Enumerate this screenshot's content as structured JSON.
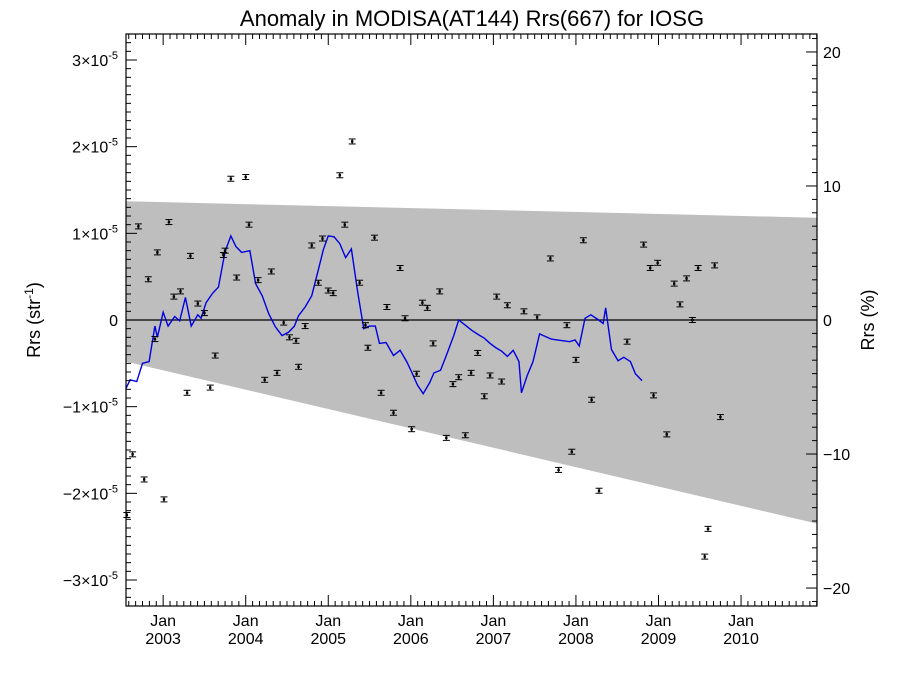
{
  "chart_data": {
    "type": "scatter",
    "title": "Anomaly in MODISA(AT144) Rrs(667) for IOSG",
    "ylabel_base": "Rrs (str",
    "ylabel_sup": "-1",
    "ylabel_close": ")",
    "y2label": "Rrs (%)",
    "xlim": [
      2002.55,
      2010.92
    ],
    "ylim": [
      -3.3e-05,
      3.3e-05
    ],
    "y2lim": [
      -21.34,
      21.34
    ],
    "x_ticks": [
      {
        "x": 2003.0,
        "top": "Jan",
        "bottom": "2003"
      },
      {
        "x": 2004.0,
        "top": "Jan",
        "bottom": "2004"
      },
      {
        "x": 2005.0,
        "top": "Jan",
        "bottom": "2005"
      },
      {
        "x": 2006.0,
        "top": "Jan",
        "bottom": "2006"
      },
      {
        "x": 2007.0,
        "top": "Jan",
        "bottom": "2007"
      },
      {
        "x": 2008.0,
        "top": "Jan",
        "bottom": "2008"
      },
      {
        "x": 2009.0,
        "top": "Jan",
        "bottom": "2009"
      },
      {
        "x": 2010.0,
        "top": "Jan",
        "bottom": "2010"
      }
    ],
    "y_ticks": [
      {
        "v": 3e-05,
        "m": "3",
        "e": "-5"
      },
      {
        "v": 2e-05,
        "m": "2",
        "e": "-5"
      },
      {
        "v": 1e-05,
        "m": "1",
        "e": "-5"
      },
      {
        "v": 0,
        "m": "0",
        "e": ""
      },
      {
        "v": -1e-05,
        "m": "−1",
        "e": "-5"
      },
      {
        "v": -2e-05,
        "m": "−2",
        "e": "-5"
      },
      {
        "v": -3e-05,
        "m": "−3",
        "e": "-5"
      }
    ],
    "y2_ticks": [
      {
        "v": 20,
        "label": "20"
      },
      {
        "v": 10,
        "label": "10"
      },
      {
        "v": 0,
        "label": "0"
      },
      {
        "v": -10,
        "label": "−10"
      },
      {
        "v": -20,
        "label": "−20"
      }
    ],
    "band": {
      "upper": [
        [
          2002.55,
          1.37e-05
        ],
        [
          2010.92,
          1.18e-05
        ]
      ],
      "lower": [
        [
          2002.55,
          -4.8e-06
        ],
        [
          2010.92,
          -2.35e-05
        ]
      ],
      "color": "#bebebe"
    },
    "points": [
      [
        2002.56,
        -2.25e-05
      ],
      [
        2002.63,
        -1.55e-05
      ],
      [
        2002.7,
        1.08e-05
      ],
      [
        2002.77,
        -1.84e-05
      ],
      [
        2002.82,
        4.7e-06
      ],
      [
        2002.9,
        -2.2e-06
      ],
      [
        2002.93,
        7.8e-06
      ],
      [
        2003.01,
        -2.07e-05
      ],
      [
        2003.07,
        1.13e-05
      ],
      [
        2003.13,
        2.7e-06
      ],
      [
        2003.21,
        3.3e-06
      ],
      [
        2003.29,
        -8.4e-06
      ],
      [
        2003.33,
        7.4e-06
      ],
      [
        2003.42,
        1.9e-06
      ],
      [
        2003.5,
        8e-07
      ],
      [
        2003.57,
        -7.8e-06
      ],
      [
        2003.63,
        -4.1e-06
      ],
      [
        2003.73,
        7.5e-06
      ],
      [
        2003.75,
        8e-06
      ],
      [
        2003.82,
        1.63e-05
      ],
      [
        2003.89,
        4.9e-06
      ],
      [
        2004.0,
        1.65e-05
      ],
      [
        2004.04,
        1.1e-05
      ],
      [
        2004.15,
        4.6e-06
      ],
      [
        2004.23,
        -6.9e-06
      ],
      [
        2004.31,
        5.6e-06
      ],
      [
        2004.38,
        -6.1e-06
      ],
      [
        2004.46,
        -3e-07
      ],
      [
        2004.53,
        -2e-06
      ],
      [
        2004.61,
        -2.4e-06
      ],
      [
        2004.64,
        -5.4e-06
      ],
      [
        2004.72,
        -7e-07
      ],
      [
        2004.8,
        8.6e-06
      ],
      [
        2004.88,
        4.3e-06
      ],
      [
        2004.93,
        9.4e-06
      ],
      [
        2005.0,
        3.4e-06
      ],
      [
        2005.06,
        3.1e-06
      ],
      [
        2005.14,
        1.67e-05
      ],
      [
        2005.2,
        1.1e-05
      ],
      [
        2005.29,
        2.06e-05
      ],
      [
        2005.38,
        4.3e-06
      ],
      [
        2005.45,
        -6e-07
      ],
      [
        2005.48,
        -3.2e-06
      ],
      [
        2005.56,
        9.5e-06
      ],
      [
        2005.64,
        -8.4e-06
      ],
      [
        2005.71,
        1.5e-06
      ],
      [
        2005.79,
        -1.07e-05
      ],
      [
        2005.87,
        6e-06
      ],
      [
        2005.93,
        2e-07
      ],
      [
        2006.01,
        -1.26e-05
      ],
      [
        2006.07,
        -6.2e-06
      ],
      [
        2006.14,
        2e-06
      ],
      [
        2006.2,
        1.4e-06
      ],
      [
        2006.27,
        -2.7e-06
      ],
      [
        2006.35,
        3.3e-06
      ],
      [
        2006.43,
        -1.36e-05
      ],
      [
        2006.51,
        -7.4e-06
      ],
      [
        2006.58,
        -6.6e-06
      ],
      [
        2006.66,
        -1.33e-05
      ],
      [
        2006.73,
        -6.1e-06
      ],
      [
        2006.81,
        -3.8e-06
      ],
      [
        2006.89,
        -8.8e-06
      ],
      [
        2006.96,
        -6.4e-06
      ],
      [
        2007.04,
        2.7e-06
      ],
      [
        2007.1,
        -7.1e-06
      ],
      [
        2007.17,
        1.7e-06
      ],
      [
        2007.37,
        1e-06
      ],
      [
        2007.53,
        3e-07
      ],
      [
        2007.69,
        7.1e-06
      ],
      [
        2007.79,
        -1.73e-05
      ],
      [
        2007.89,
        -6e-07
      ],
      [
        2007.95,
        -1.52e-05
      ],
      [
        2008.0,
        -4.6e-06
      ],
      [
        2008.09,
        9.2e-06
      ],
      [
        2008.19,
        -9.2e-06
      ],
      [
        2008.28,
        -1.97e-05
      ],
      [
        2008.62,
        -2.5e-06
      ],
      [
        2008.82,
        8.7e-06
      ],
      [
        2008.9,
        6e-06
      ],
      [
        2008.94,
        -8.7e-06
      ],
      [
        2008.99,
        6.6e-06
      ],
      [
        2009.1,
        -1.32e-05
      ],
      [
        2009.19,
        4.2e-06
      ],
      [
        2009.26,
        1.8e-06
      ],
      [
        2009.34,
        4.8e-06
      ],
      [
        2009.41,
        0.0
      ],
      [
        2009.48,
        6e-06
      ],
      [
        2009.56,
        -2.73e-05
      ],
      [
        2009.6,
        -2.41e-05
      ],
      [
        2009.68,
        6.3e-06
      ],
      [
        2009.75,
        -1.12e-05
      ]
    ],
    "point_color": "#000000",
    "line": {
      "color": "#0000e0",
      "points": [
        [
          2002.55,
          -7.9e-06
        ],
        [
          2002.6,
          -6.9e-06
        ],
        [
          2002.68,
          -7.1e-06
        ],
        [
          2002.75,
          -5e-06
        ],
        [
          2002.83,
          -4.8e-06
        ],
        [
          2002.9,
          -7e-07
        ],
        [
          2002.93,
          -2e-06
        ],
        [
          2003.0,
          9e-07
        ],
        [
          2003.06,
          -7e-07
        ],
        [
          2003.14,
          4e-07
        ],
        [
          2003.2,
          -1e-07
        ],
        [
          2003.27,
          2.6e-06
        ],
        [
          2003.34,
          -7e-07
        ],
        [
          2003.42,
          6e-07
        ],
        [
          2003.46,
          2e-07
        ],
        [
          2003.52,
          2e-06
        ],
        [
          2003.6,
          3.1e-06
        ],
        [
          2003.67,
          3.8e-06
        ],
        [
          2003.75,
          7.9e-06
        ],
        [
          2003.82,
          9.7e-06
        ],
        [
          2003.88,
          8.5e-06
        ],
        [
          2003.95,
          7.8e-06
        ],
        [
          2004.05,
          8e-06
        ],
        [
          2004.12,
          4.2e-06
        ],
        [
          2004.2,
          2.8e-06
        ],
        [
          2004.28,
          7e-07
        ],
        [
          2004.36,
          -8e-07
        ],
        [
          2004.44,
          -1.8e-06
        ],
        [
          2004.52,
          -1.4e-06
        ],
        [
          2004.59,
          -7e-07
        ],
        [
          2004.64,
          5e-07
        ],
        [
          2004.72,
          1.5e-06
        ],
        [
          2004.8,
          2.8e-06
        ],
        [
          2004.88,
          5.8e-06
        ],
        [
          2004.94,
          8.1e-06
        ],
        [
          2005.0,
          9.7e-06
        ],
        [
          2005.07,
          9.6e-06
        ],
        [
          2005.14,
          8.8e-06
        ],
        [
          2005.21,
          7.2e-06
        ],
        [
          2005.28,
          8.2e-06
        ],
        [
          2005.36,
          3e-06
        ],
        [
          2005.43,
          -1e-06
        ],
        [
          2005.5,
          -7e-07
        ],
        [
          2005.57,
          -7e-07
        ],
        [
          2005.62,
          -2.7e-06
        ],
        [
          2005.7,
          -2.6e-06
        ],
        [
          2005.79,
          -4.1e-06
        ],
        [
          2005.87,
          -3.5e-06
        ],
        [
          2005.95,
          -4.8e-06
        ],
        [
          2006.01,
          -6e-06
        ],
        [
          2006.08,
          -7.5e-06
        ],
        [
          2006.15,
          -8.5e-06
        ],
        [
          2006.23,
          -7.2e-06
        ],
        [
          2006.28,
          -6.1e-06
        ],
        [
          2006.36,
          -5.8e-06
        ],
        [
          2006.43,
          -4.1e-06
        ],
        [
          2006.52,
          -1.8e-06
        ],
        [
          2006.58,
          0.0
        ],
        [
          2006.66,
          -6e-07
        ],
        [
          2006.74,
          -1.2e-06
        ],
        [
          2006.82,
          -1.7e-06
        ],
        [
          2006.89,
          -2.1e-06
        ],
        [
          2006.96,
          -2.7e-06
        ],
        [
          2007.03,
          -3.2e-06
        ],
        [
          2007.1,
          -3.6e-06
        ],
        [
          2007.17,
          -4.2e-06
        ],
        [
          2007.24,
          -3.5e-06
        ],
        [
          2007.31,
          -4.8e-06
        ],
        [
          2007.34,
          -8.4e-06
        ],
        [
          2007.41,
          -6.4e-06
        ],
        [
          2007.48,
          -4.8e-06
        ],
        [
          2007.56,
          -1.6e-06
        ],
        [
          2007.63,
          -1.9e-06
        ],
        [
          2007.7,
          -2.2e-06
        ],
        [
          2007.77,
          -2.3e-06
        ],
        [
          2007.85,
          -2.4e-06
        ],
        [
          2007.92,
          -2.5e-06
        ],
        [
          2007.99,
          -2.3e-06
        ],
        [
          2008.04,
          -3e-06
        ],
        [
          2008.11,
          2e-07
        ],
        [
          2008.18,
          6e-07
        ],
        [
          2008.26,
          1e-07
        ],
        [
          2008.33,
          -4e-07
        ],
        [
          2008.36,
          1.4e-06
        ],
        [
          2008.43,
          -3.4e-06
        ],
        [
          2008.51,
          -4.7e-06
        ],
        [
          2008.58,
          -4.3e-06
        ],
        [
          2008.66,
          -4.8e-06
        ],
        [
          2008.72,
          -6.2e-06
        ],
        [
          2008.8,
          -7e-06
        ]
      ]
    }
  }
}
